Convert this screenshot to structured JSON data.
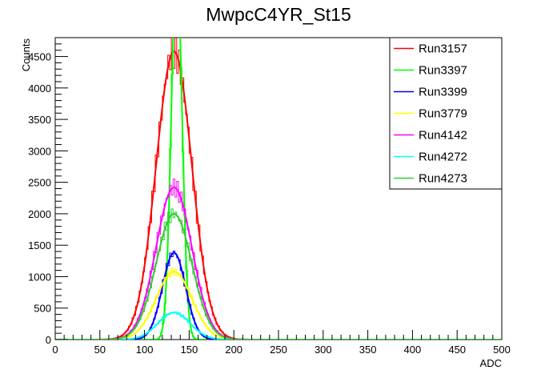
{
  "chart_data": {
    "type": "line",
    "title": "MwpcC4YR_St15",
    "xlabel": "ADC",
    "ylabel": "Counts",
    "xlim": [
      0,
      500
    ],
    "ylim": [
      0,
      4800
    ],
    "x_ticks": [
      0,
      50,
      100,
      150,
      200,
      250,
      300,
      350,
      400,
      450,
      500
    ],
    "y_ticks": [
      0,
      500,
      1000,
      1500,
      2000,
      2500,
      3000,
      3500,
      4000,
      4500
    ],
    "legend_position": "top-right",
    "series": [
      {
        "name": "Run3157",
        "color": "#ff0000",
        "mean": 133,
        "sigma": 20,
        "peak": 4580
      },
      {
        "name": "Run3397",
        "color": "#00ff00",
        "mean": 136,
        "sigma": 6,
        "peak": 6000
      },
      {
        "name": "Run3399",
        "color": "#0000ff",
        "mean": 133,
        "sigma": 13,
        "peak": 1380
      },
      {
        "name": "Run3779",
        "color": "#ffff00",
        "mean": 133,
        "sigma": 20,
        "peak": 1080
      },
      {
        "name": "Run4142",
        "color": "#ff00ff",
        "mean": 133,
        "sigma": 20,
        "peak": 2420
      },
      {
        "name": "Run4272",
        "color": "#00ffff",
        "mean": 133,
        "sigma": 18,
        "peak": 430
      },
      {
        "name": "Run4273",
        "color": "#33cc33",
        "mean": 133,
        "sigma": 20,
        "peak": 2000
      }
    ]
  }
}
